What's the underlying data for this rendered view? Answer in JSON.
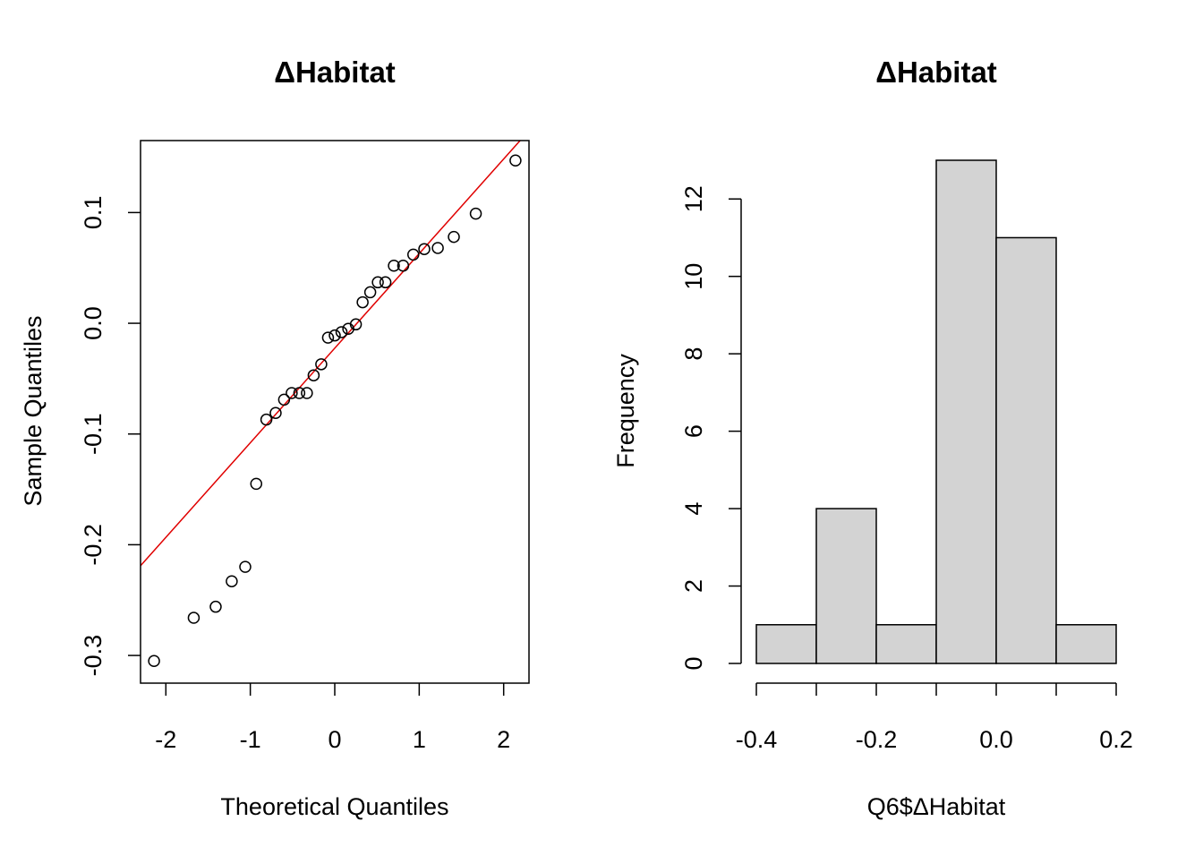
{
  "chart_data": [
    {
      "type": "scatter",
      "subtype": "normal-qq",
      "title": "ΔHabitat",
      "xlabel": "Theoretical Quantiles",
      "ylabel": "Sample Quantiles",
      "xlim": [
        -2.3,
        2.3
      ],
      "ylim": [
        -0.325,
        0.165
      ],
      "xticks": [
        "-2",
        "-1",
        "0",
        "1",
        "2"
      ],
      "xtick_values": [
        -2,
        -1,
        0,
        1,
        2
      ],
      "yticks": [
        "-0.3",
        "-0.2",
        "-0.1",
        "0.0",
        "0.1"
      ],
      "ytick_values": [
        -0.3,
        -0.2,
        -0.1,
        0.0,
        0.1
      ],
      "point_color": "#000000",
      "line_color": "#e00000",
      "reference_line": {
        "x": [
          -2.3,
          2.3
        ],
        "y": [
          -0.219,
          0.174
        ]
      },
      "points": [
        [
          -2.14,
          -0.305
        ],
        [
          -1.67,
          -0.266
        ],
        [
          -1.41,
          -0.256
        ],
        [
          -1.22,
          -0.233
        ],
        [
          -1.06,
          -0.22
        ],
        [
          -0.93,
          -0.145
        ],
        [
          -0.81,
          -0.087
        ],
        [
          -0.7,
          -0.081
        ],
        [
          -0.6,
          -0.069
        ],
        [
          -0.51,
          -0.063
        ],
        [
          -0.42,
          -0.063
        ],
        [
          -0.33,
          -0.063
        ],
        [
          -0.25,
          -0.047
        ],
        [
          -0.16,
          -0.037
        ],
        [
          -0.08,
          -0.013
        ],
        [
          0.0,
          -0.011
        ],
        [
          0.08,
          -0.008
        ],
        [
          0.16,
          -0.005
        ],
        [
          0.25,
          -0.001
        ],
        [
          0.33,
          0.019
        ],
        [
          0.42,
          0.028
        ],
        [
          0.51,
          0.037
        ],
        [
          0.6,
          0.037
        ],
        [
          0.7,
          0.052
        ],
        [
          0.81,
          0.052
        ],
        [
          0.93,
          0.062
        ],
        [
          1.06,
          0.067
        ],
        [
          1.22,
          0.068
        ],
        [
          1.41,
          0.078
        ],
        [
          1.67,
          0.099
        ],
        [
          2.14,
          0.147
        ]
      ]
    },
    {
      "type": "bar",
      "subtype": "histogram",
      "title": "ΔHabitat",
      "xlabel": "Q6$ΔHabitat",
      "ylabel": "Frequency",
      "xlim": [
        -0.4,
        0.2
      ],
      "ylim": [
        0,
        13
      ],
      "bin_edges": [
        -0.4,
        -0.3,
        -0.2,
        -0.1,
        0.0,
        0.1,
        0.2
      ],
      "values": [
        1,
        4,
        1,
        13,
        11,
        1
      ],
      "xticks": [
        "-0.4",
        "-0.2",
        "0.0",
        "0.2"
      ],
      "xtick_values": [
        -0.4,
        -0.2,
        0.0,
        0.2
      ],
      "yticks": [
        "0",
        "2",
        "4",
        "6",
        "8",
        "10",
        "12"
      ],
      "ytick_values": [
        0,
        2,
        4,
        6,
        8,
        10,
        12
      ],
      "bar_fill": "#d3d3d3"
    }
  ]
}
